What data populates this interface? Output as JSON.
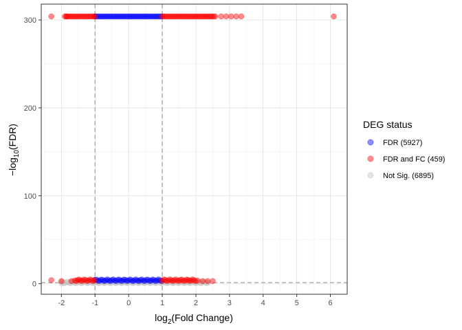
{
  "chart_data": {
    "type": "scatter",
    "title": "",
    "xlabel": {
      "base": "log",
      "sub": "2",
      "rest": "(Fold Change)"
    },
    "ylabel": {
      "pre": "−log",
      "sub": "10",
      "rest": "(FDR)"
    },
    "xlim": [
      -2.6,
      6.5
    ],
    "ylim": [
      -12,
      318
    ],
    "xticks": [
      -2,
      -1,
      0,
      1,
      2,
      3,
      4,
      5,
      6
    ],
    "yticks": [
      0,
      100,
      200,
      300
    ],
    "grid": true,
    "thresholds": {
      "x": [
        -1,
        1
      ],
      "y": 1.3
    },
    "legend": {
      "title": "DEG status",
      "placement": "right",
      "entries": [
        {
          "label": "FDR (5927)",
          "color": "#0000ff"
        },
        {
          "label": "FDR and FC (459)",
          "color": "#ff0000"
        },
        {
          "label": "Not Sig. (6895)",
          "color": "#bebebe"
        }
      ]
    },
    "series": [
      {
        "name": "FDR (5927)",
        "color": "#0000ff",
        "segments": [
          {
            "x": [
              -1.0,
              1.0
            ],
            "y": 304
          },
          {
            "x": [
              -1.0,
              1.0
            ],
            "y": 3
          }
        ]
      },
      {
        "name": "FDR and FC (459)",
        "color": "#ff0000",
        "segments": [
          {
            "x": [
              -1.9,
              -1.0
            ],
            "y": 304
          },
          {
            "x": [
              1.0,
              2.6
            ],
            "y": 304
          },
          {
            "x": [
              -1.6,
              -1.0
            ],
            "y": 3
          },
          {
            "x": [
              1.0,
              2.0
            ],
            "y": 3
          }
        ],
        "points": [
          {
            "x": -2.3,
            "y": 304
          },
          {
            "x": -1.85,
            "y": 304
          },
          {
            "x": 2.75,
            "y": 304
          },
          {
            "x": 2.9,
            "y": 304
          },
          {
            "x": 3.05,
            "y": 304
          },
          {
            "x": 3.2,
            "y": 304
          },
          {
            "x": 3.35,
            "y": 304
          },
          {
            "x": 6.1,
            "y": 304
          },
          {
            "x": -2.3,
            "y": 4
          },
          {
            "x": -2.0,
            "y": 3
          },
          {
            "x": -1.7,
            "y": 3
          },
          {
            "x": 2.05,
            "y": 3.5
          },
          {
            "x": 2.2,
            "y": 3
          },
          {
            "x": 2.35,
            "y": 3
          },
          {
            "x": 2.5,
            "y": 3
          }
        ]
      },
      {
        "name": "Not Sig. (6895)",
        "color": "#bebebe",
        "segments": [
          {
            "x": [
              -2.0,
              2.4
            ],
            "y": 0.5
          }
        ],
        "points": [
          {
            "x": -2.0,
            "y": 0.3
          }
        ]
      }
    ]
  }
}
